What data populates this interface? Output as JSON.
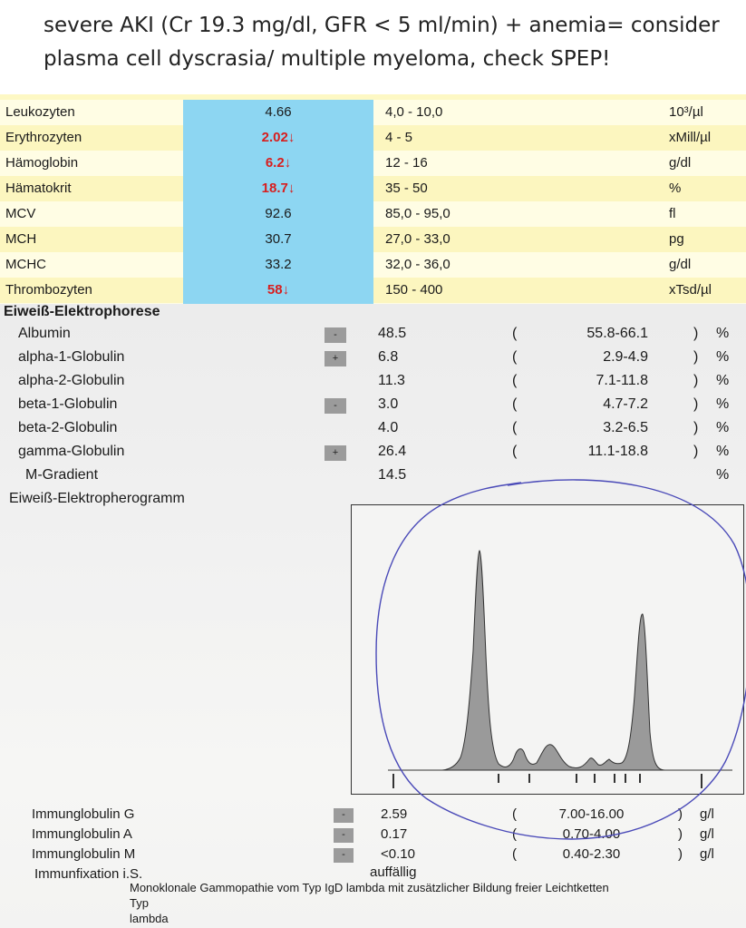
{
  "caption": {
    "line1": "severe AKI (Cr 19.3 mg/dl, GFR < 5 ml/min) + anemia= consider",
    "line2": "plasma cell dyscrasia/ multiple myeloma, check SPEP!"
  },
  "cbc": {
    "rows": [
      {
        "name": "Leukozyten",
        "value": "4.66",
        "ref": "4,0 - 10,0",
        "unit": "10³/µl"
      },
      {
        "name": "Erythrozyten",
        "value": "2.02↓",
        "ref": "4 - 5",
        "unit": "xMill/µl"
      },
      {
        "name": "Hämoglobin",
        "value": "6.2↓",
        "ref": "12 - 16",
        "unit": "g/dl"
      },
      {
        "name": "Hämatokrit",
        "value": "18.7↓",
        "ref": "35 - 50",
        "unit": "%"
      },
      {
        "name": "MCV",
        "value": "92.6",
        "ref": "85,0 - 95,0",
        "unit": "fl"
      },
      {
        "name": "MCH",
        "value": "30.7",
        "ref": "27,0 - 33,0",
        "unit": "pg"
      },
      {
        "name": "MCHC",
        "value": "33.2",
        "ref": "32,0 - 36,0",
        "unit": "g/dl"
      },
      {
        "name": "Thrombozyten",
        "value": "58↓",
        "ref": "150 - 400",
        "unit": "xTsd/µl"
      }
    ],
    "low_color": "#d81e1e",
    "value_column_color": "#8dd6f2",
    "row_alt_color": "#fcf6bf"
  },
  "electrophoresis": {
    "title": "Eiweiß-Elektrophorese",
    "rows": [
      {
        "name": "Albumin",
        "flag": "-",
        "value": "48.5",
        "lp": "(",
        "ref": "55.8-66.1",
        "rp": ")",
        "unit": "%"
      },
      {
        "name": "alpha-1-Globulin",
        "flag": "+",
        "value": "6.8",
        "lp": "(",
        "ref": "2.9-4.9",
        "rp": ")",
        "unit": "%"
      },
      {
        "name": "alpha-2-Globulin",
        "flag": "",
        "value": "11.3",
        "lp": "(",
        "ref": "7.1-11.8",
        "rp": ")",
        "unit": "%"
      },
      {
        "name": "beta-1-Globulin",
        "flag": "-",
        "value": "3.0",
        "lp": "(",
        "ref": "4.7-7.2",
        "rp": ")",
        "unit": "%"
      },
      {
        "name": "beta-2-Globulin",
        "flag": "",
        "value": "4.0",
        "lp": "(",
        "ref": "3.2-6.5",
        "rp": ")",
        "unit": "%"
      },
      {
        "name": "gamma-Globulin",
        "flag": "+",
        "value": "26.4",
        "lp": "(",
        "ref": "11.1-18.8",
        "rp": ")",
        "unit": "%"
      },
      {
        "name": "M-Gradient",
        "flag": "",
        "value": "14.5",
        "lp": "",
        "ref": "",
        "rp": "",
        "unit": "%"
      }
    ],
    "gram_label": "Eiweiß-Elektropherogramm"
  },
  "immunoglobulins": {
    "rows": [
      {
        "name": "Immunglobulin G",
        "flag": "-",
        "value": "2.59",
        "lp": "(",
        "ref": "7.00-16.00",
        "rp": ")",
        "unit": "g/l"
      },
      {
        "name": "Immunglobulin A",
        "flag": "-",
        "value": "0.17",
        "lp": "(",
        "ref": "0.70-4.00",
        "rp": ")",
        "unit": "g/l"
      },
      {
        "name": "Immunglobulin M",
        "flag": "-",
        "value": "<0.10",
        "lp": "(",
        "ref": "0.40-2.30",
        "rp": ")",
        "unit": "g/l"
      }
    ],
    "immunofixation_label": "Immunfixation i.S.",
    "immunofixation_value": "auffällig",
    "footnote_line1": "Monoklonale Gammopathie vom Typ IgD lambda  mit zusätzlicher Bildung freier Leichtketten",
    "footnote_line2": "Typ",
    "footnote_line3": "lambda"
  },
  "annotation_color": "#4a4ab8"
}
